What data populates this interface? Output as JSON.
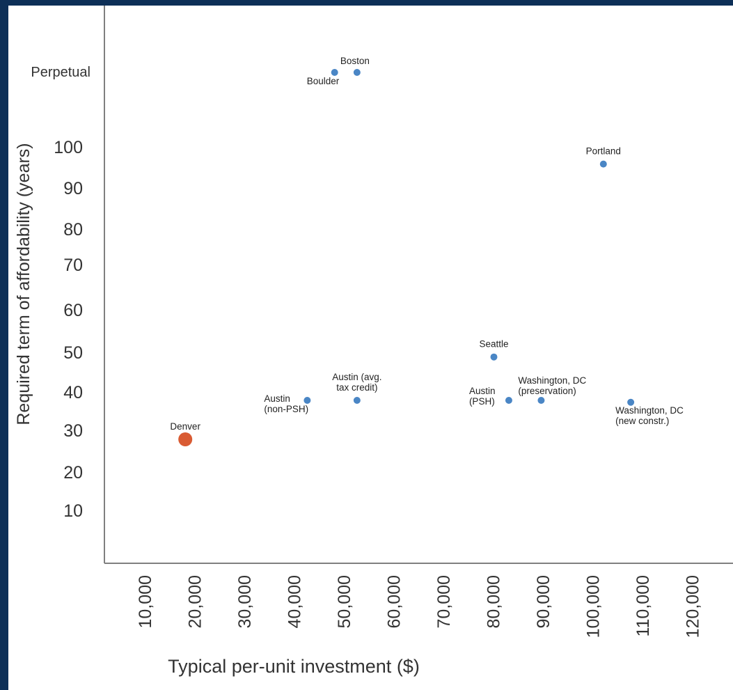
{
  "chart_data": {
    "type": "scatter",
    "title": "",
    "xlabel": "Typical per-unit investment ($)",
    "ylabel": "Required term of affordability (years)",
    "xlim": [
      5000,
      125000
    ],
    "ylim": [
      0,
      120
    ],
    "grid": false,
    "x_ticks": [
      10000,
      20000,
      30000,
      40000,
      50000,
      60000,
      70000,
      80000,
      90000,
      100000,
      110000,
      120000
    ],
    "x_tick_labels": [
      "10,000",
      "20,000",
      "30,000",
      "40,000",
      "50,000",
      "60,000",
      "70,000",
      "80,000",
      "90,000",
      "100,000",
      "110,000",
      "120,000"
    ],
    "y_ticks": [
      10,
      20,
      30,
      40,
      50,
      60,
      70,
      80,
      90,
      100,
      116
    ],
    "y_tick_labels": [
      "10",
      "20",
      "30",
      "40",
      "50",
      "60",
      "70",
      "80",
      "90",
      "100",
      "Perpetual"
    ],
    "colors": {
      "default": "#4a86c5",
      "highlight": "#d95b33",
      "axis": "#7f7f7f",
      "text": "#333333"
    },
    "points": [
      {
        "label": "Boston",
        "x": 52500,
        "y": "Perpetual",
        "label_pos": "top-right"
      },
      {
        "label": "Boulder",
        "x": 48000,
        "y": "Perpetual",
        "label_pos": "bottom-left"
      },
      {
        "label": "Portland",
        "x": 102000,
        "y": 96,
        "label_pos": "top"
      },
      {
        "label": "Seattle",
        "x": 80000,
        "y": 49,
        "label_pos": "top"
      },
      {
        "label": "Austin\n(non-PSH)",
        "x": 42500,
        "y": 38,
        "label_pos": "left"
      },
      {
        "label": "Austin (avg.\ntax credit)",
        "x": 52500,
        "y": 38,
        "label_pos": "top"
      },
      {
        "label": "Austin\n(PSH)",
        "x": 83000,
        "y": 38,
        "label_pos": "left"
      },
      {
        "label": "Washington, DC\n(preservation)",
        "x": 89500,
        "y": 38,
        "label_pos": "top-right"
      },
      {
        "label": "Washington, DC\n(new constr.)",
        "x": 107500,
        "y": 37.5,
        "label_pos": "bottom-right"
      },
      {
        "label": "Denver",
        "x": 18000,
        "y": 28,
        "label_pos": "top",
        "highlight": true
      }
    ]
  }
}
